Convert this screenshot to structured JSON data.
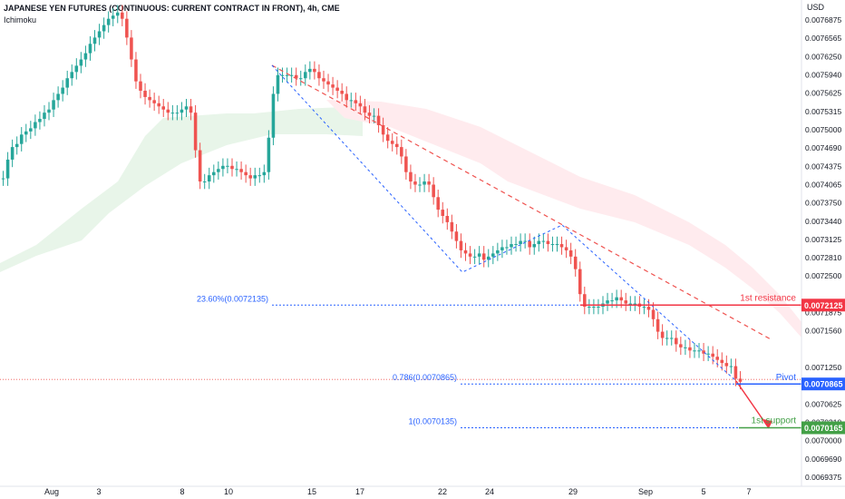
{
  "header": {
    "title": "JAPANESE YEN FUTURES (CONTINUOUS: CURRENT CONTRACT IN FRONT), 4h, CME",
    "indicator": "Ichimoku"
  },
  "colors": {
    "up": "#26a69a",
    "down": "#ef5350",
    "resistance": "#f23645",
    "pivot": "#2962ff",
    "support": "#43a047",
    "fib": "#2962ff",
    "cloud_bull": "#e8f5e9",
    "cloud_bear": "#ffebee",
    "trendline": "#ef5350"
  },
  "chart_data": {
    "type": "candlestick",
    "currency": "USD",
    "y_ticks": [
      "0.0076875",
      "0.0076565",
      "0.0076250",
      "0.0075940",
      "0.0075625",
      "0.0075315",
      "0.0075000",
      "0.0074690",
      "0.0074375",
      "0.0074065",
      "0.0073750",
      "0.0073440",
      "0.0073125",
      "0.0072810",
      "0.0072500",
      "0.0071875",
      "0.0071560",
      "0.0071250",
      "0.0070625",
      "0.0070310",
      "0.0070000",
      "0.0069690",
      "0.0069375"
    ],
    "ylim": [
      0.006923,
      0.0077
    ],
    "x_ticks": [
      "Aug",
      "3",
      "8",
      "10",
      "15",
      "17",
      "22",
      "24",
      "29",
      "Sep",
      "5",
      "7"
    ],
    "levels": [
      {
        "name": "1st resistance",
        "value": "0.0072125"
      },
      {
        "name": "Pivot",
        "value": "0.0070865"
      },
      {
        "name": "1st support",
        "value": "0.0070165"
      }
    ],
    "fib_labels": [
      "23.60%(0.0072135)",
      "0.786(0.0070865)",
      "1(0.0070135)"
    ],
    "closes": [
      0.007415,
      0.007445,
      0.007465,
      0.00747,
      0.007485,
      0.00749,
      0.007495,
      0.007505,
      0.00751,
      0.00752,
      0.007525,
      0.00754,
      0.00755,
      0.00756,
      0.007575,
      0.007585,
      0.007595,
      0.007605,
      0.007615,
      0.00763,
      0.00764,
      0.00765,
      0.00766,
      0.00767,
      0.007675,
      0.00768,
      0.00767,
      0.00764,
      0.007605,
      0.00757,
      0.007555,
      0.007545,
      0.00754,
      0.007535,
      0.00753,
      0.007525,
      0.00752,
      0.00752,
      0.00752,
      0.007525,
      0.00753,
      0.00752,
      0.00746,
      0.00741,
      0.00741,
      0.00742,
      0.007425,
      0.00743,
      0.007435,
      0.007435,
      0.00743,
      0.00743,
      0.007425,
      0.00742,
      0.007415,
      0.00742,
      0.00742,
      0.007425,
      0.00748,
      0.00755,
      0.00758,
      0.00758,
      0.00758,
      0.00758,
      0.007575,
      0.007575,
      0.007585,
      0.00759,
      0.007585,
      0.007575,
      0.00757,
      0.007565,
      0.00756,
      0.007555,
      0.00755,
      0.00754,
      0.00754,
      0.007535,
      0.00753,
      0.00752,
      0.007515,
      0.007515,
      0.0075,
      0.007485,
      0.007475,
      0.00747,
      0.007465,
      0.00745,
      0.007425,
      0.00741,
      0.007405,
      0.007405,
      0.00741,
      0.007405,
      0.007385,
      0.007365,
      0.007355,
      0.007345,
      0.00733,
      0.007315,
      0.0073,
      0.007295,
      0.00729,
      0.00729,
      0.007295,
      0.007285,
      0.00729,
      0.007295,
      0.0073,
      0.007305,
      0.007305,
      0.00731,
      0.00731,
      0.007315,
      0.007315,
      0.007305,
      0.00731,
      0.007315,
      0.007315,
      0.00731,
      0.00731,
      0.00731,
      0.007305,
      0.0073,
      0.00729,
      0.00727,
      0.00723,
      0.00721,
      0.00721,
      0.00721,
      0.00721,
      0.007215,
      0.00722,
      0.00722,
      0.007225,
      0.00722,
      0.007215,
      0.007215,
      0.007215,
      0.00721,
      0.00721,
      0.007205,
      0.00719,
      0.00717,
      0.00716,
      0.00716,
      0.00716,
      0.00715,
      0.007145,
      0.007145,
      0.00714,
      0.00714,
      0.00714,
      0.007135,
      0.007135,
      0.00713,
      0.007125,
      0.00712,
      0.007115,
      0.007115,
      0.007095,
      0.00709
    ]
  }
}
